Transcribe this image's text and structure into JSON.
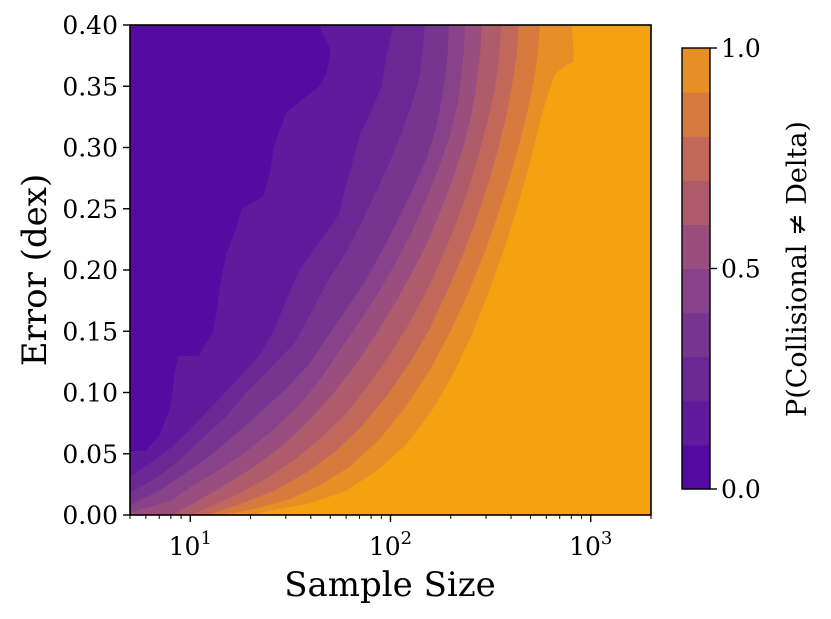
{
  "chart_data": {
    "type": "heatmap",
    "subtype": "filled-contour",
    "xlabel": "Sample Size",
    "ylabel": "Error (dex)",
    "x_scale": "log",
    "xlim": [
      5,
      2000
    ],
    "ylim": [
      0.0,
      0.4
    ],
    "x_ticks": [
      {
        "value": 10,
        "base": "10",
        "exp": "1"
      },
      {
        "value": 100,
        "base": "10",
        "exp": "2"
      },
      {
        "value": 1000,
        "base": "10",
        "exp": "3"
      }
    ],
    "y_ticks": [
      "0.00",
      "0.05",
      "0.10",
      "0.15",
      "0.20",
      "0.25",
      "0.30",
      "0.35",
      "0.40"
    ],
    "colorbar": {
      "label": "P(Collisional ≠ Delta)",
      "range": [
        0.0,
        1.0
      ],
      "ticks": [
        "0.0",
        "0.5",
        "1.0"
      ],
      "levels": [
        0.0,
        0.1,
        0.2,
        0.3,
        0.4,
        0.5,
        0.6,
        0.7,
        0.8,
        0.9,
        1.0
      ],
      "colors": [
        "#550aa2",
        "#5f1b9c",
        "#6b2895",
        "#78358f",
        "#874289",
        "#9a4e7f",
        "#ae5b6c",
        "#c2685a",
        "#d67a3e",
        "#e68f26"
      ],
      "high_color": "#f5a211"
    },
    "contours": [
      {
        "level": 0.1,
        "points": [
          [
            5,
            0.052
          ],
          [
            6,
            0.053
          ],
          [
            7,
            0.065
          ],
          [
            8,
            0.09
          ],
          [
            8.3,
            0.115
          ],
          [
            8.7,
            0.13
          ],
          [
            11,
            0.13
          ],
          [
            13,
            0.15
          ],
          [
            14,
            0.185
          ],
          [
            15,
            0.212
          ],
          [
            17,
            0.235
          ],
          [
            18,
            0.25
          ],
          [
            23,
            0.26
          ],
          [
            25,
            0.28
          ],
          [
            26,
            0.3
          ],
          [
            28,
            0.315
          ],
          [
            30,
            0.328
          ],
          [
            40,
            0.345
          ],
          [
            44,
            0.35
          ],
          [
            48,
            0.362
          ],
          [
            50,
            0.38
          ],
          [
            45,
            0.395
          ],
          [
            44,
            0.4
          ]
        ]
      },
      {
        "level": 0.2,
        "points": [
          [
            5,
            0.032
          ],
          [
            6,
            0.04
          ],
          [
            8,
            0.055
          ],
          [
            10,
            0.07
          ],
          [
            13,
            0.09
          ],
          [
            17,
            0.11
          ],
          [
            22,
            0.13
          ],
          [
            26,
            0.15
          ],
          [
            30,
            0.175
          ],
          [
            35,
            0.2
          ],
          [
            45,
            0.225
          ],
          [
            55,
            0.245
          ],
          [
            60,
            0.27
          ],
          [
            65,
            0.29
          ],
          [
            70,
            0.31
          ],
          [
            80,
            0.33
          ],
          [
            90,
            0.35
          ],
          [
            95,
            0.375
          ],
          [
            100,
            0.39
          ],
          [
            103,
            0.4
          ]
        ]
      },
      {
        "level": 0.3,
        "points": [
          [
            5,
            0.018
          ],
          [
            7,
            0.032
          ],
          [
            9,
            0.046
          ],
          [
            11,
            0.06
          ],
          [
            15,
            0.08
          ],
          [
            19,
            0.1
          ],
          [
            25,
            0.12
          ],
          [
            33,
            0.14
          ],
          [
            40,
            0.165
          ],
          [
            48,
            0.19
          ],
          [
            60,
            0.215
          ],
          [
            72,
            0.24
          ],
          [
            85,
            0.265
          ],
          [
            100,
            0.29
          ],
          [
            115,
            0.315
          ],
          [
            130,
            0.34
          ],
          [
            140,
            0.36
          ],
          [
            145,
            0.38
          ],
          [
            148,
            0.4
          ]
        ]
      },
      {
        "level": 0.4,
        "points": [
          [
            5,
            0.008
          ],
          [
            7,
            0.02
          ],
          [
            9,
            0.032
          ],
          [
            12,
            0.046
          ],
          [
            16,
            0.063
          ],
          [
            22,
            0.083
          ],
          [
            30,
            0.103
          ],
          [
            39,
            0.123
          ],
          [
            48,
            0.145
          ],
          [
            60,
            0.168
          ],
          [
            74,
            0.19
          ],
          [
            90,
            0.215
          ],
          [
            108,
            0.24
          ],
          [
            128,
            0.265
          ],
          [
            150,
            0.29
          ],
          [
            168,
            0.315
          ],
          [
            180,
            0.34
          ],
          [
            188,
            0.36
          ],
          [
            193,
            0.38
          ],
          [
            195,
            0.4
          ]
        ]
      },
      {
        "level": 0.5,
        "points": [
          [
            5,
            0.002
          ],
          [
            8,
            0.012
          ],
          [
            10,
            0.023
          ],
          [
            14,
            0.037
          ],
          [
            19,
            0.052
          ],
          [
            26,
            0.07
          ],
          [
            35,
            0.09
          ],
          [
            45,
            0.112
          ],
          [
            56,
            0.135
          ],
          [
            70,
            0.158
          ],
          [
            87,
            0.182
          ],
          [
            107,
            0.207
          ],
          [
            129,
            0.233
          ],
          [
            152,
            0.26
          ],
          [
            175,
            0.285
          ],
          [
            198,
            0.31
          ],
          [
            215,
            0.335
          ],
          [
            225,
            0.355
          ],
          [
            232,
            0.38
          ],
          [
            235,
            0.4
          ]
        ]
      },
      {
        "level": 0.6,
        "points": [
          [
            8,
            0.0
          ],
          [
            11,
            0.012
          ],
          [
            15,
            0.025
          ],
          [
            21,
            0.04
          ],
          [
            29,
            0.057
          ],
          [
            39,
            0.077
          ],
          [
            51,
            0.098
          ],
          [
            65,
            0.12
          ],
          [
            81,
            0.143
          ],
          [
            101,
            0.168
          ],
          [
            124,
            0.194
          ],
          [
            150,
            0.22
          ],
          [
            177,
            0.248
          ],
          [
            205,
            0.275
          ],
          [
            232,
            0.302
          ],
          [
            255,
            0.33
          ],
          [
            270,
            0.355
          ],
          [
            280,
            0.378
          ],
          [
            285,
            0.4
          ]
        ]
      },
      {
        "level": 0.7,
        "points": [
          [
            10,
            0.0
          ],
          [
            13,
            0.008
          ],
          [
            17,
            0.017
          ],
          [
            24,
            0.03
          ],
          [
            33,
            0.045
          ],
          [
            45,
            0.063
          ],
          [
            60,
            0.083
          ],
          [
            77,
            0.106
          ],
          [
            98,
            0.13
          ],
          [
            122,
            0.155
          ],
          [
            150,
            0.182
          ],
          [
            180,
            0.21
          ],
          [
            212,
            0.238
          ],
          [
            244,
            0.266
          ],
          [
            275,
            0.295
          ],
          [
            305,
            0.322
          ],
          [
            330,
            0.347
          ],
          [
            345,
            0.37
          ],
          [
            354,
            0.39
          ],
          [
            358,
            0.4
          ]
        ]
      },
      {
        "level": 0.8,
        "points": [
          [
            12,
            0.0
          ],
          [
            15,
            0.005
          ],
          [
            19,
            0.011
          ],
          [
            27,
            0.021
          ],
          [
            38,
            0.035
          ],
          [
            53,
            0.052
          ],
          [
            72,
            0.073
          ],
          [
            95,
            0.097
          ],
          [
            123,
            0.123
          ],
          [
            154,
            0.15
          ],
          [
            188,
            0.18
          ],
          [
            226,
            0.21
          ],
          [
            266,
            0.24
          ],
          [
            306,
            0.27
          ],
          [
            345,
            0.3
          ],
          [
            380,
            0.328
          ],
          [
            407,
            0.355
          ],
          [
            425,
            0.375
          ],
          [
            436,
            0.4
          ]
        ]
      },
      {
        "level": 0.9,
        "points": [
          [
            14,
            0.0
          ],
          [
            18,
            0.003
          ],
          [
            22,
            0.006
          ],
          [
            31,
            0.013
          ],
          [
            44,
            0.024
          ],
          [
            63,
            0.04
          ],
          [
            88,
            0.062
          ],
          [
            118,
            0.088
          ],
          [
            155,
            0.117
          ],
          [
            196,
            0.148
          ],
          [
            242,
            0.18
          ],
          [
            292,
            0.213
          ],
          [
            343,
            0.245
          ],
          [
            395,
            0.277
          ],
          [
            445,
            0.307
          ],
          [
            490,
            0.335
          ],
          [
            525,
            0.36
          ],
          [
            545,
            0.38
          ],
          [
            555,
            0.4
          ]
        ]
      },
      {
        "level": 1.0,
        "points": [
          [
            20,
            0.0
          ],
          [
            24,
            0.003
          ],
          [
            30,
            0.006
          ],
          [
            40,
            0.01
          ],
          [
            60,
            0.02
          ],
          [
            85,
            0.036
          ],
          [
            120,
            0.058
          ],
          [
            160,
            0.085
          ],
          [
            205,
            0.115
          ],
          [
            255,
            0.148
          ],
          [
            310,
            0.183
          ],
          [
            370,
            0.218
          ],
          [
            430,
            0.252
          ],
          [
            490,
            0.285
          ],
          [
            545,
            0.315
          ],
          [
            600,
            0.34
          ],
          [
            660,
            0.36
          ],
          [
            760,
            0.368
          ],
          [
            820,
            0.37
          ],
          [
            815,
            0.385
          ],
          [
            800,
            0.4
          ]
        ]
      }
    ]
  }
}
